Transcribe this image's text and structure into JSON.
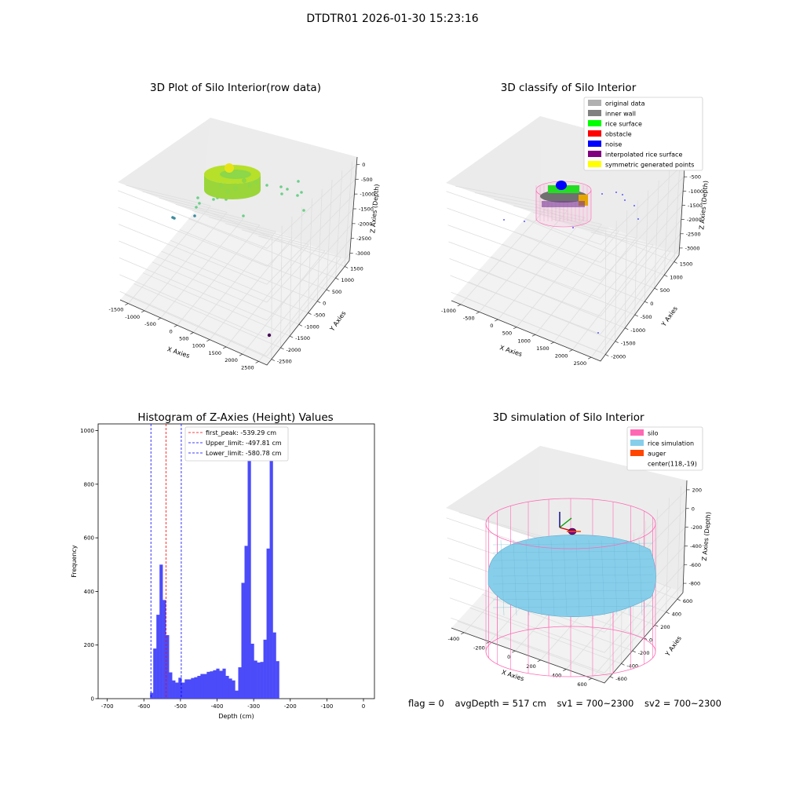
{
  "suptitle": "DTDTR01 2026-01-30 15:23:16",
  "colors": {
    "hist_bar": "#4b4bfa",
    "silo": "#ff69b4",
    "rice": "#87ceeb",
    "auger": "#ff4500",
    "pane": "#f2f2f2",
    "grid": "#dedede"
  },
  "chart_data": [
    {
      "type": "scatter",
      "title": "3D Plot of Silo Interior(row data)",
      "xlabel": "X Axies",
      "ylabel": "Y Axies",
      "zlabel": "Z Axies (Depth)",
      "x_ticks": [
        -1500,
        -1000,
        -500,
        0,
        500,
        1000,
        1500,
        2000,
        2500
      ],
      "y_ticks": [
        -2500,
        -2000,
        -1500,
        -1000,
        -500,
        0,
        500,
        1000,
        1500
      ],
      "z_ticks": [
        0,
        -500,
        -1000,
        -1500,
        -2000,
        -2500,
        -3000
      ],
      "xlim": [
        -1500,
        2500
      ],
      "ylim": [
        -2500,
        1500
      ],
      "zlim": [
        -3000,
        0
      ],
      "grid": true
    },
    {
      "type": "scatter",
      "title": "3D classify of Silo Interior",
      "xlabel": "X Axies",
      "ylabel": "Y Axies",
      "zlabel": "Z Axies (Depth)",
      "x_ticks": [
        -1000,
        -500,
        0,
        500,
        1000,
        1500,
        2000,
        2500
      ],
      "y_ticks": [
        -2000,
        -1500,
        -1000,
        -500,
        0,
        500,
        1000,
        1500
      ],
      "z_ticks": [
        0,
        -500,
        -1000,
        -1500,
        -2000,
        -2500,
        -3000
      ],
      "xlim": [
        -1000,
        2500
      ],
      "ylim": [
        -2000,
        1500
      ],
      "zlim": [
        -3000,
        0
      ],
      "legend": [
        {
          "label": "original data",
          "color": "#b0b0b0"
        },
        {
          "label": "inner wall",
          "color": "#808080"
        },
        {
          "label": "rice surface",
          "color": "#00ff00"
        },
        {
          "label": "obstacle",
          "color": "#ff0000"
        },
        {
          "label": "noise",
          "color": "#0000ff"
        },
        {
          "label": "interpolated rice surface",
          "color": "#800080"
        },
        {
          "label": "symmetric generated points",
          "color": "#ffff00"
        }
      ],
      "legend_loc": "upper right",
      "grid": true
    },
    {
      "type": "bar",
      "title": "Histogram of Z-Axies (Height) Values",
      "xlabel": "Depth (cm)",
      "ylabel": "Frequency",
      "xlim": [
        -725,
        30
      ],
      "ylim": [
        0,
        1025
      ],
      "x_ticks": [
        -700,
        -600,
        -500,
        -400,
        -300,
        -200,
        -100,
        0
      ],
      "y_ticks": [
        0,
        200,
        400,
        600,
        800,
        1000
      ],
      "bin_start": -583,
      "bin_width": 8.6,
      "values": [
        22,
        187,
        313,
        500,
        368,
        237,
        98,
        68,
        60,
        78,
        60,
        72,
        72,
        77,
        80,
        85,
        92,
        92,
        100,
        102,
        106,
        112,
        104,
        112,
        85,
        75,
        68,
        30,
        117,
        432,
        570,
        960,
        205,
        142,
        135,
        137,
        220,
        560,
        975,
        247,
        140
      ],
      "vlines": [
        {
          "label": "first_peak: -539.29 cm",
          "x": -539.29,
          "color": "#ff0000"
        },
        {
          "label": "Upper_limit: -497.81 cm",
          "x": -497.81,
          "color": "#0000ff"
        },
        {
          "label": "Lower_limit: -580.78 cm",
          "x": -580.78,
          "color": "#0000ff"
        }
      ],
      "legend_loc": "upper left"
    },
    {
      "type": "scatter",
      "title": "3D simulation of Silo Interior",
      "xlabel": "X Axies",
      "ylabel": "Y Axies",
      "zlabel": "Z Axies (Depth)",
      "x_ticks": [
        -400,
        -200,
        0,
        200,
        400,
        600
      ],
      "y_ticks": [
        -600,
        -400,
        -200,
        0,
        200,
        400,
        600
      ],
      "z_ticks": [
        200,
        0,
        -200,
        -400,
        -600,
        -800
      ],
      "legend": [
        {
          "label": "silo",
          "color": "#ff69b4"
        },
        {
          "label": "rice simulation",
          "color": "#87ceeb"
        },
        {
          "label": "auger",
          "color": "#ff4500"
        },
        {
          "label": "center(118,-19)",
          "color": ""
        }
      ],
      "legend_loc": "upper right",
      "grid": true
    }
  ],
  "status": {
    "flag": "flag = 0",
    "avg": "avgDepth = 517 cm",
    "sv1": "sv1 = 700~2300",
    "sv2": "sv2 = 700~2300"
  }
}
